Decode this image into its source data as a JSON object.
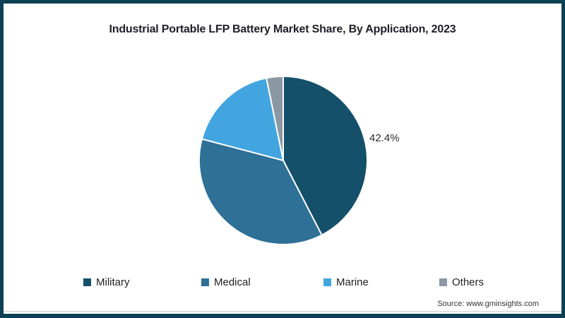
{
  "title": "Industrial Portable LFP Battery Market Share, By Application, 2023",
  "source_text": "Source: www.gminsights.com",
  "frame": {
    "border_color": "#0d4156",
    "background_color": "#ffffff"
  },
  "chart_data": {
    "type": "pie",
    "title": "Industrial Portable LFP Battery Market Share, By Application, 2023",
    "categories": [
      "Military",
      "Medical",
      "Marine",
      "Others"
    ],
    "values": [
      42.4,
      36.7,
      17.7,
      3.2
    ],
    "colors": [
      "#14506a",
      "#2e7096",
      "#42a5e0",
      "#8b97a3"
    ],
    "start_angle_deg": 0,
    "direction": "clockwise",
    "slice_border_color": "#ffffff",
    "legend_position": "bottom",
    "data_labels": [
      {
        "series": "Military",
        "text": "42.4%"
      }
    ]
  }
}
